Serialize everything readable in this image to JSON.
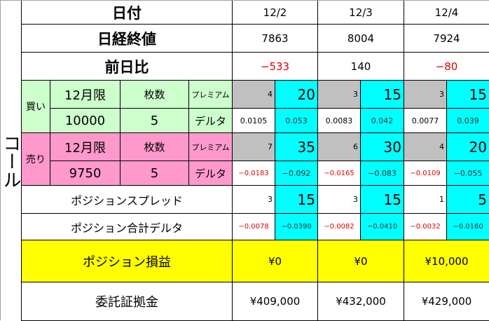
{
  "side_label": "コール",
  "labels": {
    "date": "日付",
    "close": "日経終値",
    "change": "前日比",
    "buy": "買い",
    "sell": "売り",
    "month": "12月限",
    "lots": "枚数",
    "premium": "プレミアム",
    "delta": "デルタ",
    "spread": "ポジションスプレッド",
    "total_delta": "ポジション合計デルタ",
    "pnl": "ポジション損益",
    "margin": "委託証拠金"
  },
  "buy": {
    "strike": "10000",
    "lots": "5"
  },
  "sell": {
    "strike": "9750",
    "lots": "5"
  },
  "days": [
    {
      "date": "12/2",
      "close": "7863",
      "change": "−533",
      "change_negative": true,
      "buy_premium": "4",
      "buy_premium_total": "20",
      "buy_delta": "0.0105",
      "buy_delta_total": "0.053",
      "sell_premium": "7",
      "sell_premium_total": "35",
      "sell_delta": "−0.0183",
      "sell_delta_total": "−0.092",
      "spread": "3",
      "spread_total": "15",
      "tdelta": "−0.0078",
      "tdelta_total": "−0.0390",
      "pnl": "¥0",
      "margin": "¥409,000"
    },
    {
      "date": "12/3",
      "close": "8004",
      "change": "140",
      "change_negative": false,
      "buy_premium": "3",
      "buy_premium_total": "15",
      "buy_delta": "0.0083",
      "buy_delta_total": "0.042",
      "sell_premium": "6",
      "sell_premium_total": "30",
      "sell_delta": "−0.0165",
      "sell_delta_total": "−0.083",
      "spread": "3",
      "spread_total": "15",
      "tdelta": "−0.0082",
      "tdelta_total": "−0.0410",
      "pnl": "¥0",
      "margin": "¥432,000"
    },
    {
      "date": "12/4",
      "close": "7924",
      "change": "−80",
      "change_negative": true,
      "buy_premium": "3",
      "buy_premium_total": "15",
      "buy_delta": "0.0077",
      "buy_delta_total": "0.039",
      "sell_premium": "4",
      "sell_premium_total": "20",
      "sell_delta": "−0.0109",
      "sell_delta_total": "−0.055",
      "spread": "1",
      "spread_total": "5",
      "tdelta": "−0.0032",
      "tdelta_total": "−0.0160",
      "pnl": "¥10,000",
      "margin": "¥429,000"
    }
  ],
  "colors": {
    "buy_bg": "#ccffcc",
    "sell_bg": "#ff99cc",
    "premium_bg": "#c0c0c0",
    "total_bg": "#00ffff",
    "pnl_bg": "#ffff00",
    "negative": "#e00000"
  }
}
